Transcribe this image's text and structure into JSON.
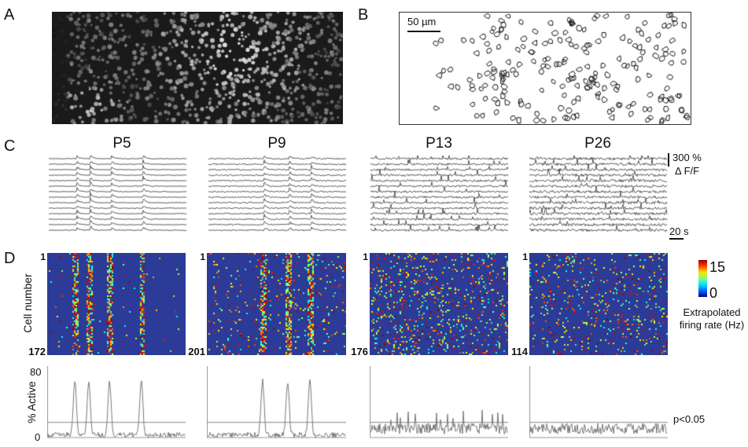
{
  "panels": {
    "a": "A",
    "b": "B",
    "c": "C",
    "d": "D"
  },
  "scale_bar_b": "50 µm",
  "ages": [
    "P5",
    "P9",
    "P13",
    "P26"
  ],
  "cell_counts": [
    172,
    201,
    176,
    114
  ],
  "cell_first": "1",
  "trace_scale": {
    "amplitude": "300 %",
    "unit": "Δ F/F",
    "time": "20 s"
  },
  "heatmap": {
    "ylabel": "Cell number",
    "colorbar_min": "0",
    "colorbar_max": "15",
    "colorbar_label": "Extrapolated firing rate (Hz)",
    "colormap": "jet",
    "background": "#2b3b97"
  },
  "active_plot": {
    "ylabel": "% Active",
    "ymin": "0",
    "ymax": "80",
    "threshold_label": "p<0.05",
    "threshold_percent": 17
  }
}
